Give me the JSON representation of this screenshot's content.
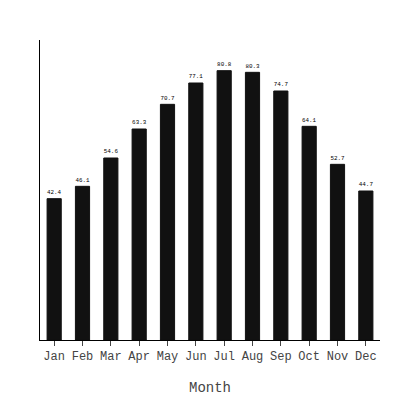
{
  "chart_data": {
    "type": "bar",
    "categories": [
      "Jan",
      "Feb",
      "Mar",
      "Apr",
      "May",
      "Jun",
      "Jul",
      "Aug",
      "Sep",
      "Oct",
      "Nov",
      "Dec"
    ],
    "values": [
      42.4,
      46.1,
      54.6,
      63.3,
      70.7,
      77.1,
      80.8,
      80.3,
      74.7,
      64.1,
      52.7,
      44.7
    ],
    "color": "#111111",
    "xlabel": "Month",
    "ylim": [
      0,
      90
    ],
    "grid": false,
    "data_labels": true,
    "tick_labels": "x"
  }
}
